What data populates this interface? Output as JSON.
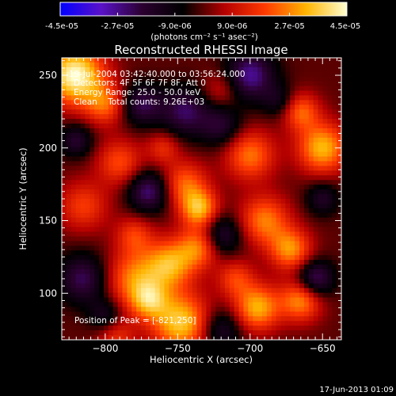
{
  "colorbar": {
    "ticks": [
      "-4.5e-05",
      "-2.7e-05",
      "-9.0e-06",
      "9.0e-06",
      "2.7e-05",
      "4.5e-05"
    ],
    "tick_values": [
      -4.5e-05,
      -2.7e-05,
      -9e-06,
      9e-06,
      2.7e-05,
      4.5e-05
    ],
    "range": [
      -4.5e-05,
      4.5e-05
    ],
    "unit_label": "(photons cm⁻² s⁻¹ asec⁻²)",
    "colormap": [
      "#0000ff",
      "#5a12c8",
      "#2b0030",
      "#000000",
      "#b40000",
      "#ff3a00",
      "#ffb400",
      "#ffffd2"
    ]
  },
  "chart_data": {
    "type": "heatmap",
    "title": "Reconstructed RHESSI Image",
    "xlabel": "Heliocentric X (arcsec)",
    "ylabel": "Heliocentric Y (arcsec)",
    "xlim": [
      -830,
      -637
    ],
    "ylim": [
      68,
      262
    ],
    "x_ticks": [
      -800,
      -750,
      -700,
      -650
    ],
    "x_tick_labels": [
      "−800",
      "−750",
      "−700",
      "−650"
    ],
    "y_ticks": [
      100,
      150,
      200,
      250
    ],
    "y_tick_labels": [
      "100",
      "150",
      "200",
      "250"
    ],
    "info_lines": [
      "19-Jul-2004 03:42:40.000 to 03:56:24.000",
      "Detectors: 4F 5F 6F 7F 8F, Att 0",
      "Energy Range: 25.0 - 50.0 keV",
      "Clean    Total counts: 9.26E+03"
    ],
    "peak_label": "Position of Peak = [-821,250]",
    "peak": [
      -821,
      250
    ],
    "blobs": [
      {
        "x": -821,
        "y": 250,
        "r": 14,
        "amp": 4.5e-05
      },
      {
        "x": -800,
        "y": 230,
        "r": 10,
        "amp": 2.2e-05
      },
      {
        "x": -780,
        "y": 110,
        "r": 14,
        "amp": 2.6e-05
      },
      {
        "x": -748,
        "y": 80,
        "r": 14,
        "amp": 3.6e-05
      },
      {
        "x": -755,
        "y": 120,
        "r": 12,
        "amp": 3e-05
      },
      {
        "x": -735,
        "y": 132,
        "r": 10,
        "amp": 2.5e-05
      },
      {
        "x": -735,
        "y": 158,
        "r": 9,
        "amp": 3.2e-05
      },
      {
        "x": -745,
        "y": 175,
        "r": 11,
        "amp": 2.3e-05
      },
      {
        "x": -700,
        "y": 195,
        "r": 12,
        "amp": 2.5e-05
      },
      {
        "x": -690,
        "y": 150,
        "r": 12,
        "amp": 2.6e-05
      },
      {
        "x": -672,
        "y": 130,
        "r": 10,
        "amp": 2.8e-05
      },
      {
        "x": -695,
        "y": 90,
        "r": 11,
        "amp": 3.2e-05
      },
      {
        "x": -665,
        "y": 95,
        "r": 10,
        "amp": 2.8e-05
      },
      {
        "x": -650,
        "y": 200,
        "r": 12,
        "amp": 3.3e-05
      },
      {
        "x": -665,
        "y": 225,
        "r": 9,
        "amp": 2.3e-05
      },
      {
        "x": -815,
        "y": 160,
        "r": 12,
        "amp": 1.8e-05
      },
      {
        "x": -790,
        "y": 190,
        "r": 11,
        "amp": 2e-05
      },
      {
        "x": -760,
        "y": 200,
        "r": 8,
        "amp": 1.5e-05
      },
      {
        "x": -770,
        "y": 95,
        "r": 9,
        "amp": 2.4e-05
      },
      {
        "x": -710,
        "y": 110,
        "r": 9,
        "amp": 1.8e-05
      },
      {
        "x": -780,
        "y": 140,
        "r": 9,
        "amp": 1.7e-05
      },
      {
        "x": -792,
        "y": 70,
        "r": 9,
        "amp": 1.5e-05
      },
      {
        "x": -720,
        "y": 240,
        "r": 9,
        "amp": 1.2e-05
      },
      {
        "x": -700,
        "y": 250,
        "r": 12,
        "amp": -2.8e-05
      },
      {
        "x": -745,
        "y": 225,
        "r": 12,
        "amp": -2.3e-05
      },
      {
        "x": -775,
        "y": 230,
        "r": 10,
        "amp": -2.2e-05
      },
      {
        "x": -770,
        "y": 170,
        "r": 10,
        "amp": -2.6e-05
      },
      {
        "x": -720,
        "y": 215,
        "r": 10,
        "amp": -1.8e-05
      },
      {
        "x": -815,
        "y": 110,
        "r": 12,
        "amp": -2.3e-05
      },
      {
        "x": -820,
        "y": 205,
        "r": 8,
        "amp": -1.8e-05
      },
      {
        "x": -720,
        "y": 140,
        "r": 10,
        "amp": -2.1e-05
      },
      {
        "x": -655,
        "y": 110,
        "r": 9,
        "amp": -2.6e-05
      },
      {
        "x": -650,
        "y": 165,
        "r": 8,
        "amp": -1.6e-05
      },
      {
        "x": -720,
        "y": 75,
        "r": 10,
        "amp": -1.8e-05
      },
      {
        "x": -800,
        "y": 85,
        "r": 8,
        "amp": -1.5e-05
      },
      {
        "x": -680,
        "y": 232,
        "r": 8,
        "amp": -1.3e-05
      }
    ]
  },
  "footer": {
    "date": "17-Jun-2013 01:09"
  }
}
